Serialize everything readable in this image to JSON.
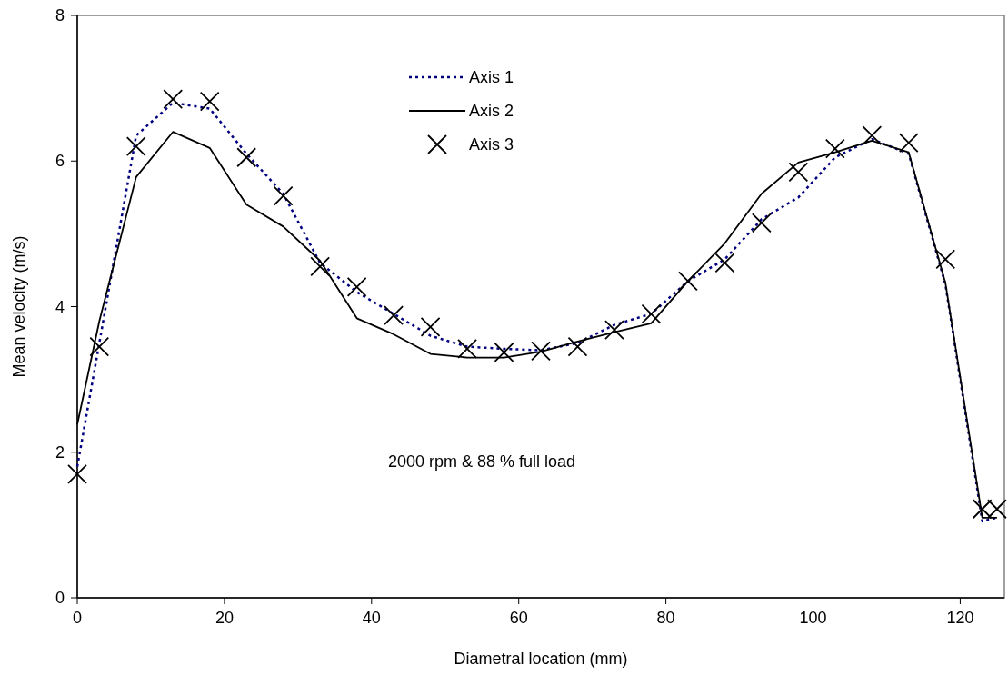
{
  "chart_data": {
    "type": "line",
    "xlabel": "Diametral location (mm)",
    "ylabel": "Mean velocity (m/s)",
    "x": [
      0,
      3,
      8,
      13,
      18,
      23,
      28,
      33,
      38,
      43,
      48,
      53,
      58,
      63,
      68,
      73,
      78,
      83,
      88,
      93,
      98,
      103,
      108,
      113,
      118,
      123,
      125
    ],
    "series": [
      {
        "name": "Axis 1",
        "color": "#000080",
        "line_style": "dotted",
        "marker": "none",
        "values": [
          1.8,
          3.5,
          6.35,
          6.8,
          6.72,
          6.1,
          5.55,
          4.6,
          4.2,
          3.9,
          3.6,
          3.45,
          3.42,
          3.4,
          3.5,
          3.75,
          3.9,
          4.35,
          4.65,
          5.2,
          5.5,
          6.05,
          6.3,
          6.1,
          4.3,
          1.05,
          1.1
        ]
      },
      {
        "name": "Axis 2",
        "color": "#000000",
        "line_style": "solid",
        "marker": "none",
        "values": [
          2.38,
          3.8,
          5.78,
          6.4,
          6.18,
          5.4,
          5.1,
          4.63,
          3.84,
          3.62,
          3.35,
          3.3,
          3.3,
          3.38,
          3.52,
          3.65,
          3.77,
          4.35,
          4.87,
          5.55,
          5.98,
          6.12,
          6.28,
          6.12,
          4.32,
          1.1,
          1.1
        ]
      },
      {
        "name": "Axis 3",
        "type": "scatter",
        "color": "#000000",
        "marker": "cross",
        "values": [
          1.7,
          3.45,
          6.2,
          6.85,
          6.82,
          6.05,
          5.52,
          4.55,
          4.27,
          3.88,
          3.72,
          3.42,
          3.37,
          3.39,
          3.45,
          3.68,
          3.9,
          4.35,
          4.6,
          5.15,
          5.85,
          6.17,
          6.35,
          6.25,
          4.65,
          1.22,
          1.22
        ]
      }
    ],
    "xlim": [
      0,
      126
    ],
    "xticks": [
      0,
      20,
      40,
      60,
      80,
      100,
      120
    ],
    "ylim": [
      0,
      8
    ],
    "yticks": [
      0,
      2,
      4,
      6,
      8
    ],
    "grid": false,
    "legend": "top",
    "annotations": [
      "2000 rpm  & 88 % full load"
    ]
  }
}
